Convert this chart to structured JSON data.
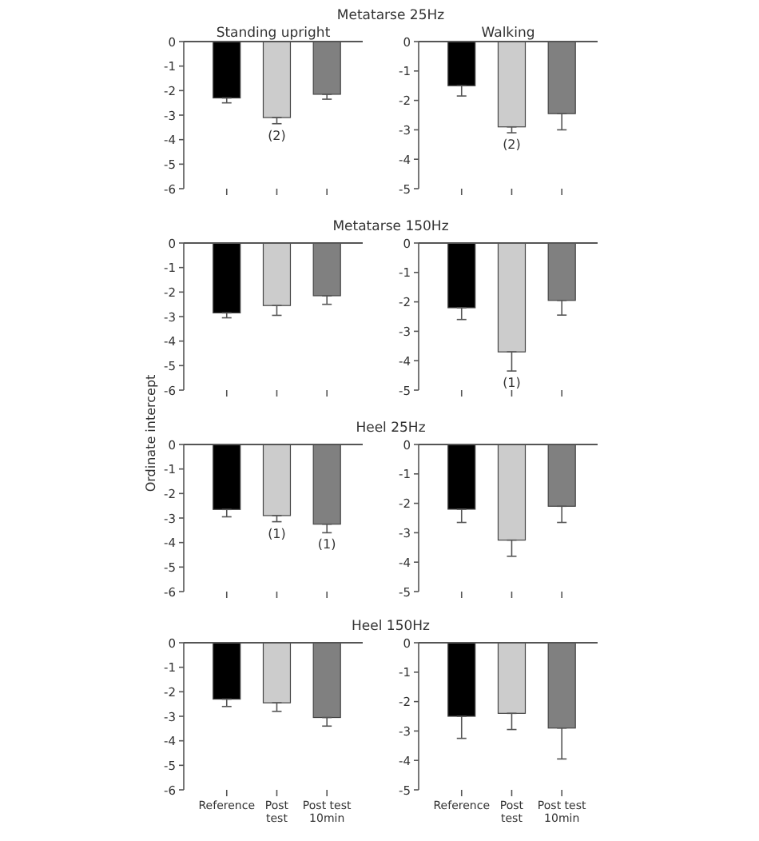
{
  "chart_data": [
    {
      "type": "bar",
      "title": "Metatarse 25Hz",
      "subtitle": "Standing upright",
      "categories": [
        "Reference",
        "Post test",
        "Post test 10min"
      ],
      "tick_labels": "y",
      "ylim": [
        -6,
        0
      ],
      "yticks": [
        0,
        -1,
        -2,
        -3,
        -4,
        -5,
        -6
      ],
      "values": [
        -2.3,
        -3.1,
        -2.15
      ],
      "colors": [
        "#000000",
        "#cccccc",
        "#808080"
      ],
      "errors": [
        [
          -2.5,
          -2.3
        ],
        [
          -3.35,
          -3.1
        ],
        [
          -2.35,
          -2.15
        ]
      ],
      "annotations": [
        {
          "text": "(2)",
          "x": "Post test",
          "y": -3.1
        }
      ]
    },
    {
      "type": "bar",
      "subtitle": "Walking",
      "categories": [
        "Reference",
        "Post test",
        "Post test 10min"
      ],
      "tick_labels": "y",
      "ylim": [
        -5,
        0
      ],
      "yticks": [
        0,
        -1,
        -2,
        -3,
        -4,
        -5
      ],
      "values": [
        -1.5,
        -2.9,
        -2.45
      ],
      "colors": [
        "#000000",
        "#cccccc",
        "#808080"
      ],
      "errors": [
        [
          -1.85,
          -1.5
        ],
        [
          -3.1,
          -2.9
        ],
        [
          -3.0,
          -2.45
        ]
      ],
      "annotations": [
        {
          "text": "(2)",
          "x": "Post test",
          "y": -2.9
        }
      ]
    },
    {
      "type": "bar",
      "title": "Metatarse 150Hz",
      "ylabel": "Ordinate intercept",
      "categories": [
        "Reference",
        "Post test",
        "Post test 10min"
      ],
      "tick_labels": "y",
      "ylim": [
        -6,
        0
      ],
      "yticks": [
        0,
        -1,
        -2,
        -3,
        -4,
        -5,
        -6
      ],
      "values": [
        -2.85,
        -2.55,
        -2.15
      ],
      "colors": [
        "#000000",
        "#cccccc",
        "#808080"
      ],
      "errors": [
        [
          -3.05,
          -2.85
        ],
        [
          -2.95,
          -2.55
        ],
        [
          -2.5,
          -2.15
        ]
      ]
    },
    {
      "type": "bar",
      "categories": [
        "Reference",
        "Post test",
        "Post test 10min"
      ],
      "tick_labels": "y",
      "ylim": [
        -5,
        0
      ],
      "yticks": [
        0,
        -1,
        -2,
        -3,
        -4,
        -5
      ],
      "values": [
        -2.2,
        -3.7,
        -1.95
      ],
      "colors": [
        "#000000",
        "#cccccc",
        "#808080"
      ],
      "errors": [
        [
          -2.6,
          -2.2
        ],
        [
          -4.35,
          -3.7
        ],
        [
          -2.45,
          -1.95
        ]
      ],
      "annotations": [
        {
          "text": "(1)",
          "x": "Post test",
          "y": -3.7
        }
      ]
    },
    {
      "type": "bar",
      "title": "Heel 25Hz",
      "categories": [
        "Reference",
        "Post test",
        "Post test 10min"
      ],
      "tick_labels": "y",
      "ylim": [
        -6,
        0
      ],
      "yticks": [
        0,
        -1,
        -2,
        -3,
        -4,
        -5,
        -6
      ],
      "values": [
        -2.65,
        -2.9,
        -3.25
      ],
      "colors": [
        "#000000",
        "#cccccc",
        "#808080"
      ],
      "errors": [
        [
          -2.95,
          -2.65
        ],
        [
          -3.15,
          -2.9
        ],
        [
          -3.6,
          -3.25
        ]
      ],
      "annotations": [
        {
          "text": "(1)",
          "x": "Post test",
          "y": -2.9
        },
        {
          "text": "(1)",
          "x": "Post test 10min",
          "y": -3.25
        }
      ]
    },
    {
      "type": "bar",
      "categories": [
        "Reference",
        "Post test",
        "Post test 10min"
      ],
      "tick_labels": "y",
      "ylim": [
        -5,
        0
      ],
      "yticks": [
        0,
        -1,
        -2,
        -3,
        -4,
        -5
      ],
      "values": [
        -2.2,
        -3.25,
        -2.1
      ],
      "colors": [
        "#000000",
        "#cccccc",
        "#808080"
      ],
      "errors": [
        [
          -2.65,
          -2.2
        ],
        [
          -3.8,
          -3.25
        ],
        [
          -2.65,
          -2.1
        ]
      ]
    },
    {
      "type": "bar",
      "title": "Heel 150Hz",
      "categories": [
        "Reference",
        "Post test",
        "Post test 10min"
      ],
      "ylim": [
        -6,
        0
      ],
      "yticks": [
        0,
        -1,
        -2,
        -3,
        -4,
        -5,
        -6
      ],
      "values": [
        -2.3,
        -2.45,
        -3.05
      ],
      "colors": [
        "#000000",
        "#cccccc",
        "#808080"
      ],
      "errors": [
        [
          -2.6,
          -2.3
        ],
        [
          -2.8,
          -2.45
        ],
        [
          -3.4,
          -3.05
        ]
      ]
    },
    {
      "type": "bar",
      "categories": [
        "Reference",
        "Post test",
        "Post test 10min"
      ],
      "ylim": [
        -5,
        0
      ],
      "yticks": [
        0,
        -1,
        -2,
        -3,
        -4,
        -5
      ],
      "values": [
        -2.5,
        -2.4,
        -2.9
      ],
      "colors": [
        "#000000",
        "#cccccc",
        "#808080"
      ],
      "errors": [
        [
          -3.25,
          -2.5
        ],
        [
          -2.95,
          -2.4
        ],
        [
          -3.95,
          -2.9
        ]
      ]
    }
  ]
}
